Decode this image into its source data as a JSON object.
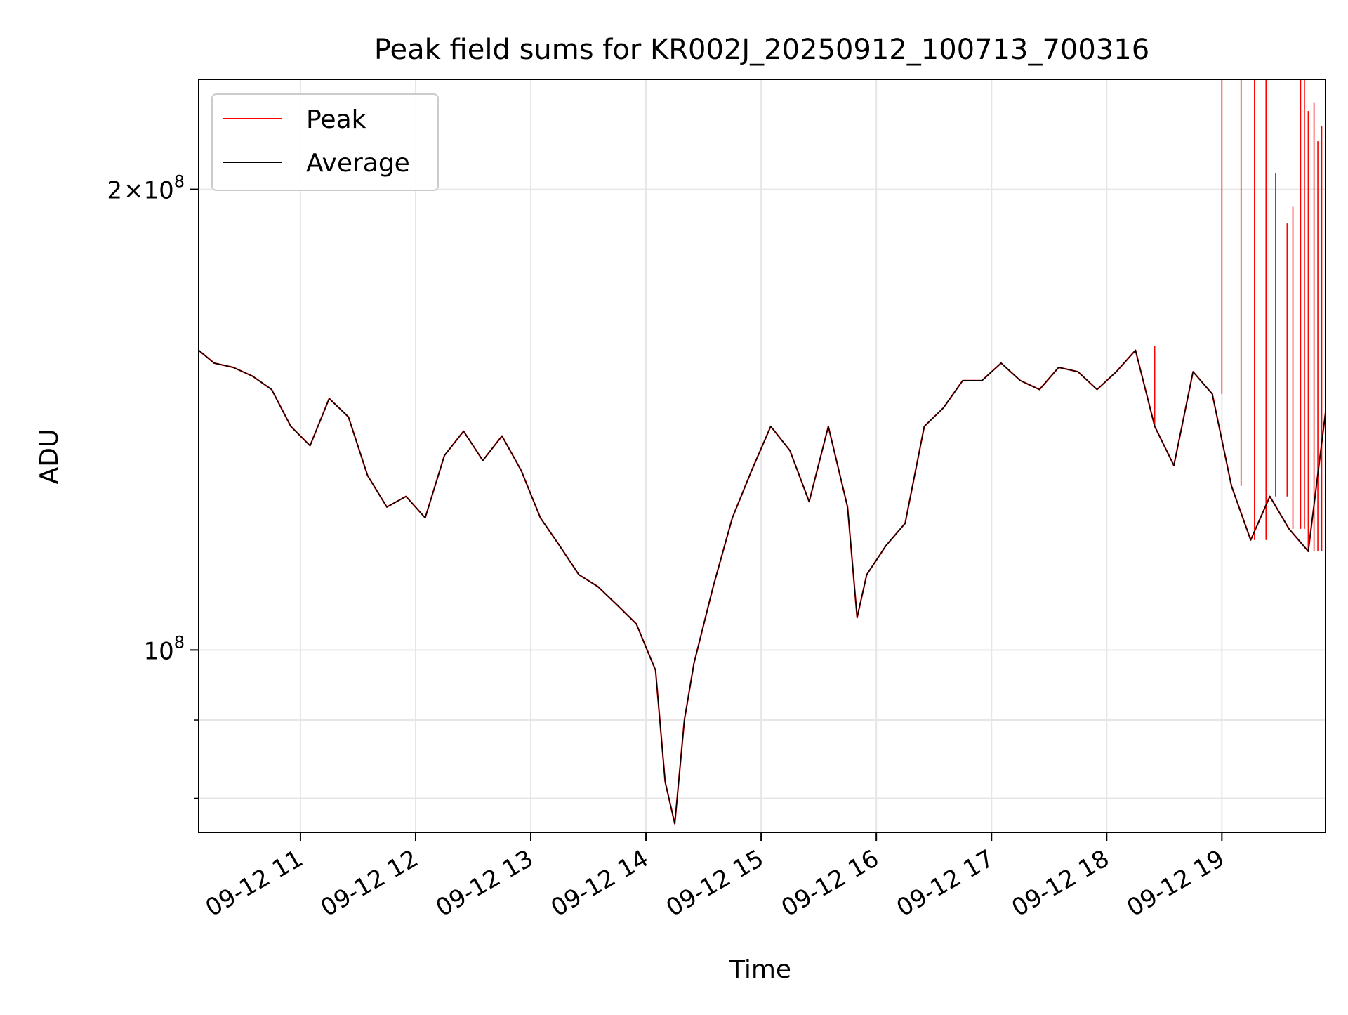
{
  "chart_data": {
    "type": "line",
    "title": "Peak field sums for KR002J_20250912_100713_700316",
    "xlabel": "Time",
    "ylabel": "ADU",
    "x_tick_labels": [
      "09-12 11",
      "09-12 12",
      "09-12 13",
      "09-12 14",
      "09-12 15",
      "09-12 16",
      "09-12 17",
      "09-12 18",
      "09-12 19"
    ],
    "y_tick_labels": [
      {
        "base": "10",
        "exp": "8",
        "value": 100000000
      },
      {
        "mult": "2",
        "times": "×",
        "base": "10",
        "exp": "8",
        "value": 200000000
      }
    ],
    "y_scale": "log",
    "ylim": [
      76000000,
      236000000
    ],
    "xlim": [
      "2025-09-12 10:07",
      "2025-09-12 19:54"
    ],
    "grid": true,
    "legend_position": "upper-left",
    "series": [
      {
        "name": "Peak",
        "color": "#ff0000",
        "times": [
          "10:07",
          "10:15",
          "10:25",
          "10:35",
          "10:45",
          "10:55",
          "11:05",
          "11:15",
          "11:25",
          "11:35",
          "11:45",
          "11:55",
          "12:05",
          "12:15",
          "12:25",
          "12:35",
          "12:45",
          "12:55",
          "13:05",
          "13:15",
          "13:25",
          "13:35",
          "13:45",
          "13:55",
          "14:05",
          "14:10",
          "14:15",
          "14:20",
          "14:25",
          "14:35",
          "14:45",
          "14:55",
          "15:05",
          "15:15",
          "15:25",
          "15:35",
          "15:45",
          "15:50",
          "15:55",
          "16:05",
          "16:15",
          "16:25",
          "16:35",
          "16:45",
          "16:55",
          "17:05",
          "17:15",
          "17:25",
          "17:35",
          "17:45",
          "17:55",
          "18:05",
          "18:15",
          "18:25",
          "18:35",
          "18:45",
          "18:55",
          "19:05",
          "19:15",
          "19:25",
          "19:35",
          "19:45",
          "19:54"
        ],
        "values": [
          157000000,
          154000000,
          153000000,
          151000000,
          148000000,
          140000000,
          136000000,
          146000000,
          142000000,
          130000000,
          124000000,
          126000000,
          122000000,
          134000000,
          139000000,
          133000000,
          138000000,
          131000000,
          122000000,
          117000000,
          112000000,
          110000000,
          107000000,
          104000000,
          97000000,
          82000000,
          77000000,
          90000000,
          98000000,
          110000000,
          122000000,
          131000000,
          140000000,
          135000000,
          125000000,
          140000000,
          124000000,
          105000000,
          112000000,
          117000000,
          121000000,
          140000000,
          144000000,
          150000000,
          150000000,
          154000000,
          150000000,
          148000000,
          153000000,
          152000000,
          148000000,
          152000000,
          157000000,
          140000000,
          132000000,
          152000000,
          147000000,
          128000000,
          118000000,
          126000000,
          120000000,
          116000000,
          143000000
        ],
        "spikes": [
          {
            "time": "18:25",
            "value": 158000000
          },
          {
            "time": "19:00",
            "value": 236000000
          },
          {
            "time": "19:10",
            "value": 236000000
          },
          {
            "time": "19:17",
            "value": 236000000
          },
          {
            "time": "19:23",
            "value": 236000000
          },
          {
            "time": "19:28",
            "value": 205000000
          },
          {
            "time": "19:34",
            "value": 190000000
          },
          {
            "time": "19:37",
            "value": 195000000
          },
          {
            "time": "19:41",
            "value": 236000000
          },
          {
            "time": "19:43",
            "value": 236000000
          },
          {
            "time": "19:45",
            "value": 225000000
          },
          {
            "time": "19:48",
            "value": 228000000
          },
          {
            "time": "19:50",
            "value": 215000000
          },
          {
            "time": "19:52",
            "value": 220000000
          }
        ]
      },
      {
        "name": "Average",
        "color": "#000000",
        "times": [
          "10:07",
          "10:15",
          "10:25",
          "10:35",
          "10:45",
          "10:55",
          "11:05",
          "11:15",
          "11:25",
          "11:35",
          "11:45",
          "11:55",
          "12:05",
          "12:15",
          "12:25",
          "12:35",
          "12:45",
          "12:55",
          "13:05",
          "13:15",
          "13:25",
          "13:35",
          "13:45",
          "13:55",
          "14:05",
          "14:10",
          "14:15",
          "14:20",
          "14:25",
          "14:35",
          "14:45",
          "14:55",
          "15:05",
          "15:15",
          "15:25",
          "15:35",
          "15:45",
          "15:50",
          "15:55",
          "16:05",
          "16:15",
          "16:25",
          "16:35",
          "16:45",
          "16:55",
          "17:05",
          "17:15",
          "17:25",
          "17:35",
          "17:45",
          "17:55",
          "18:05",
          "18:15",
          "18:25",
          "18:35",
          "18:45",
          "18:55",
          "19:05",
          "19:15",
          "19:25",
          "19:35",
          "19:45",
          "19:54"
        ],
        "values": [
          157000000,
          154000000,
          153000000,
          151000000,
          148000000,
          140000000,
          136000000,
          146000000,
          142000000,
          130000000,
          124000000,
          126000000,
          122000000,
          134000000,
          139000000,
          133000000,
          138000000,
          131000000,
          122000000,
          117000000,
          112000000,
          110000000,
          107000000,
          104000000,
          97000000,
          82000000,
          77000000,
          90000000,
          98000000,
          110000000,
          122000000,
          131000000,
          140000000,
          135000000,
          125000000,
          140000000,
          124000000,
          105000000,
          112000000,
          117000000,
          121000000,
          140000000,
          144000000,
          150000000,
          150000000,
          154000000,
          150000000,
          148000000,
          153000000,
          152000000,
          148000000,
          152000000,
          157000000,
          140000000,
          132000000,
          152000000,
          147000000,
          128000000,
          118000000,
          126000000,
          120000000,
          116000000,
          143000000
        ]
      }
    ]
  }
}
